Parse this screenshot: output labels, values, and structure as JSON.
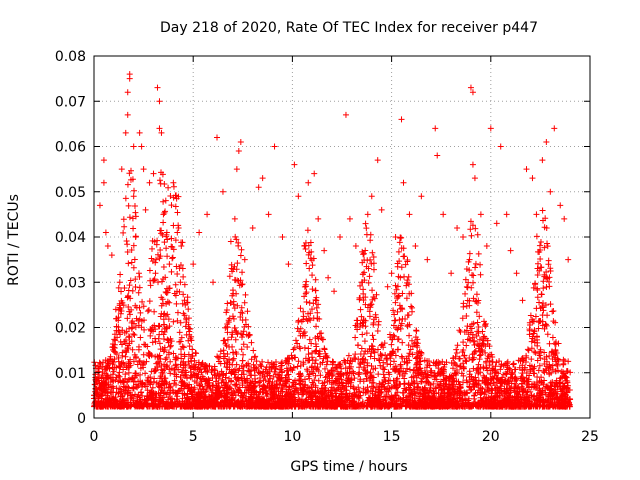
{
  "chart_data": {
    "type": "scatter",
    "title": "Day 218 of 2020, Rate Of TEC Index for receiver p447",
    "xlabel": "GPS time / hours",
    "ylabel": "ROTI / TECUs",
    "xlim": [
      0,
      25
    ],
    "ylim": [
      0,
      0.08
    ],
    "x_ticks": [
      0,
      5,
      10,
      15,
      20,
      25
    ],
    "y_ticks": [
      0,
      0.01,
      0.02,
      0.03,
      0.04,
      0.05,
      0.06,
      0.07,
      0.08
    ],
    "x_tick_labels": [
      "0",
      "5",
      "10",
      "15",
      "20",
      "25"
    ],
    "y_tick_labels": [
      "0",
      "0.01",
      "0.02",
      "0.03",
      "0.04",
      "0.05",
      "0.06",
      "0.07",
      "0.08"
    ],
    "grid": true,
    "marker": "+",
    "color": "#ff0000",
    "series": [
      {
        "points": [
          [
            0.0,
            0.005
          ],
          [
            0.2,
            0.011
          ],
          [
            0.3,
            0.047
          ],
          [
            0.5,
            0.052
          ],
          [
            0.5,
            0.057
          ],
          [
            0.6,
            0.041
          ],
          [
            0.7,
            0.038
          ],
          [
            0.9,
            0.036
          ],
          [
            1.1,
            0.024
          ],
          [
            1.3,
            0.03
          ],
          [
            1.4,
            0.055
          ],
          [
            1.6,
            0.063
          ],
          [
            1.7,
            0.067
          ],
          [
            1.7,
            0.072
          ],
          [
            1.8,
            0.076
          ],
          [
            1.8,
            0.075
          ],
          [
            2.0,
            0.06
          ],
          [
            2.0,
            0.049
          ],
          [
            2.1,
            0.04
          ],
          [
            2.3,
            0.063
          ],
          [
            2.4,
            0.06
          ],
          [
            2.5,
            0.055
          ],
          [
            2.6,
            0.046
          ],
          [
            2.8,
            0.052
          ],
          [
            3.0,
            0.054
          ],
          [
            3.2,
            0.073
          ],
          [
            3.3,
            0.07
          ],
          [
            3.3,
            0.064
          ],
          [
            3.4,
            0.063
          ],
          [
            3.5,
            0.045
          ],
          [
            3.8,
            0.034
          ],
          [
            4.0,
            0.052
          ],
          [
            4.2,
            0.041
          ],
          [
            4.4,
            0.038
          ],
          [
            4.6,
            0.025
          ],
          [
            5.0,
            0.034
          ],
          [
            5.3,
            0.041
          ],
          [
            5.7,
            0.045
          ],
          [
            6.0,
            0.03
          ],
          [
            6.2,
            0.062
          ],
          [
            6.5,
            0.05
          ],
          [
            6.9,
            0.039
          ],
          [
            7.1,
            0.044
          ],
          [
            7.2,
            0.055
          ],
          [
            7.3,
            0.059
          ],
          [
            7.4,
            0.061
          ],
          [
            7.6,
            0.035
          ],
          [
            8.0,
            0.042
          ],
          [
            8.3,
            0.051
          ],
          [
            8.5,
            0.053
          ],
          [
            8.8,
            0.045
          ],
          [
            9.1,
            0.06
          ],
          [
            9.5,
            0.04
          ],
          [
            9.8,
            0.034
          ],
          [
            10.1,
            0.056
          ],
          [
            10.3,
            0.049
          ],
          [
            10.6,
            0.038
          ],
          [
            10.8,
            0.052
          ],
          [
            11.1,
            0.054
          ],
          [
            11.3,
            0.044
          ],
          [
            11.6,
            0.037
          ],
          [
            11.8,
            0.031
          ],
          [
            12.1,
            0.028
          ],
          [
            12.4,
            0.04
          ],
          [
            12.7,
            0.067
          ],
          [
            12.9,
            0.044
          ],
          [
            13.2,
            0.038
          ],
          [
            13.5,
            0.03
          ],
          [
            13.8,
            0.045
          ],
          [
            14.0,
            0.049
          ],
          [
            14.3,
            0.057
          ],
          [
            14.5,
            0.046
          ],
          [
            14.8,
            0.029
          ],
          [
            15.0,
            0.032
          ],
          [
            15.2,
            0.04
          ],
          [
            15.5,
            0.066
          ],
          [
            15.6,
            0.052
          ],
          [
            15.9,
            0.045
          ],
          [
            16.2,
            0.038
          ],
          [
            16.5,
            0.049
          ],
          [
            16.8,
            0.035
          ],
          [
            17.2,
            0.064
          ],
          [
            17.3,
            0.058
          ],
          [
            17.6,
            0.045
          ],
          [
            18.0,
            0.032
          ],
          [
            18.3,
            0.042
          ],
          [
            18.6,
            0.04
          ],
          [
            19.0,
            0.073
          ],
          [
            19.1,
            0.072
          ],
          [
            19.1,
            0.056
          ],
          [
            19.2,
            0.053
          ],
          [
            19.5,
            0.045
          ],
          [
            19.8,
            0.038
          ],
          [
            20.0,
            0.064
          ],
          [
            20.3,
            0.043
          ],
          [
            20.5,
            0.06
          ],
          [
            20.8,
            0.045
          ],
          [
            21.0,
            0.037
          ],
          [
            21.3,
            0.032
          ],
          [
            21.6,
            0.026
          ],
          [
            21.8,
            0.055
          ],
          [
            22.1,
            0.053
          ],
          [
            22.3,
            0.045
          ],
          [
            22.6,
            0.057
          ],
          [
            22.8,
            0.061
          ],
          [
            23.0,
            0.05
          ],
          [
            23.2,
            0.064
          ],
          [
            23.5,
            0.047
          ],
          [
            23.7,
            0.044
          ],
          [
            23.9,
            0.035
          ]
        ]
      }
    ]
  }
}
